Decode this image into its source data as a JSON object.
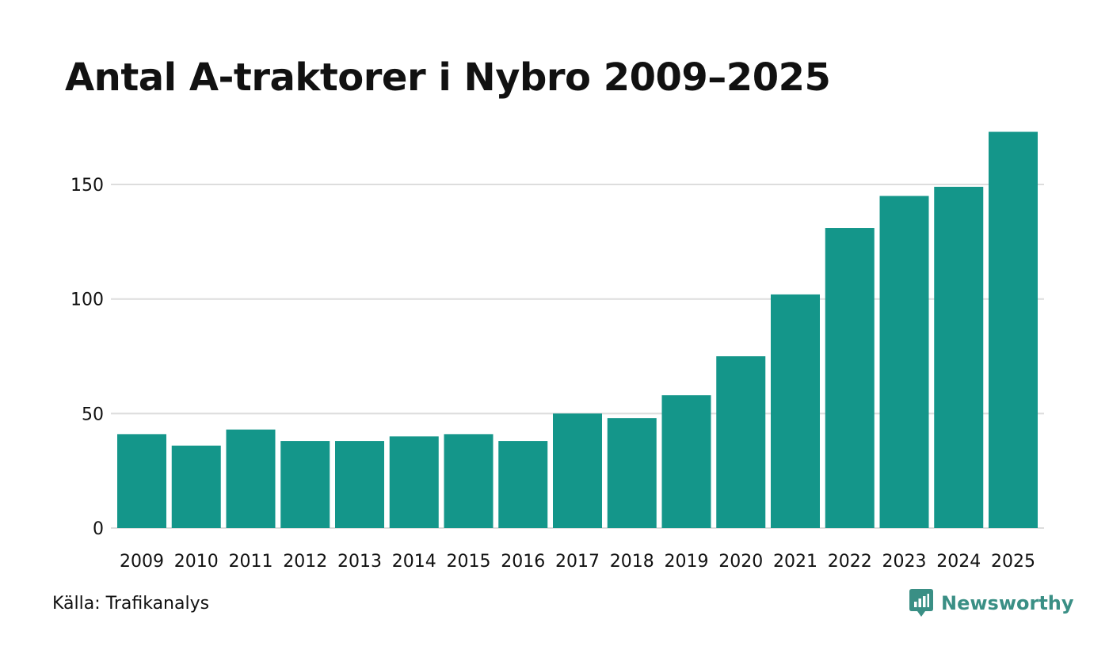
{
  "title": "Antal A-traktorer i Nybro 2009–2025",
  "source": "Källa: Trafikanalys",
  "brand": {
    "name": "Newsworthy",
    "icon": "newsworthy-chart-icon",
    "color": "#3a8f85"
  },
  "colors": {
    "bar": "#14968a",
    "grid": "#dddddd",
    "text": "#111111"
  },
  "chart_data": {
    "type": "bar",
    "title": "Antal A-traktorer i Nybro 2009–2025",
    "categories": [
      "2009",
      "2010",
      "2011",
      "2012",
      "2013",
      "2014",
      "2015",
      "2016",
      "2017",
      "2018",
      "2019",
      "2020",
      "2021",
      "2022",
      "2023",
      "2024",
      "2025"
    ],
    "values": [
      41,
      36,
      43,
      38,
      38,
      40,
      41,
      38,
      50,
      48,
      58,
      75,
      102,
      131,
      145,
      149,
      173
    ],
    "yticks": [
      0,
      50,
      100,
      150
    ],
    "ytick_labels": [
      "0",
      "50",
      "100",
      "150"
    ],
    "ylim": [
      0,
      175
    ],
    "xlabel": "",
    "ylabel": "",
    "grid": true
  }
}
